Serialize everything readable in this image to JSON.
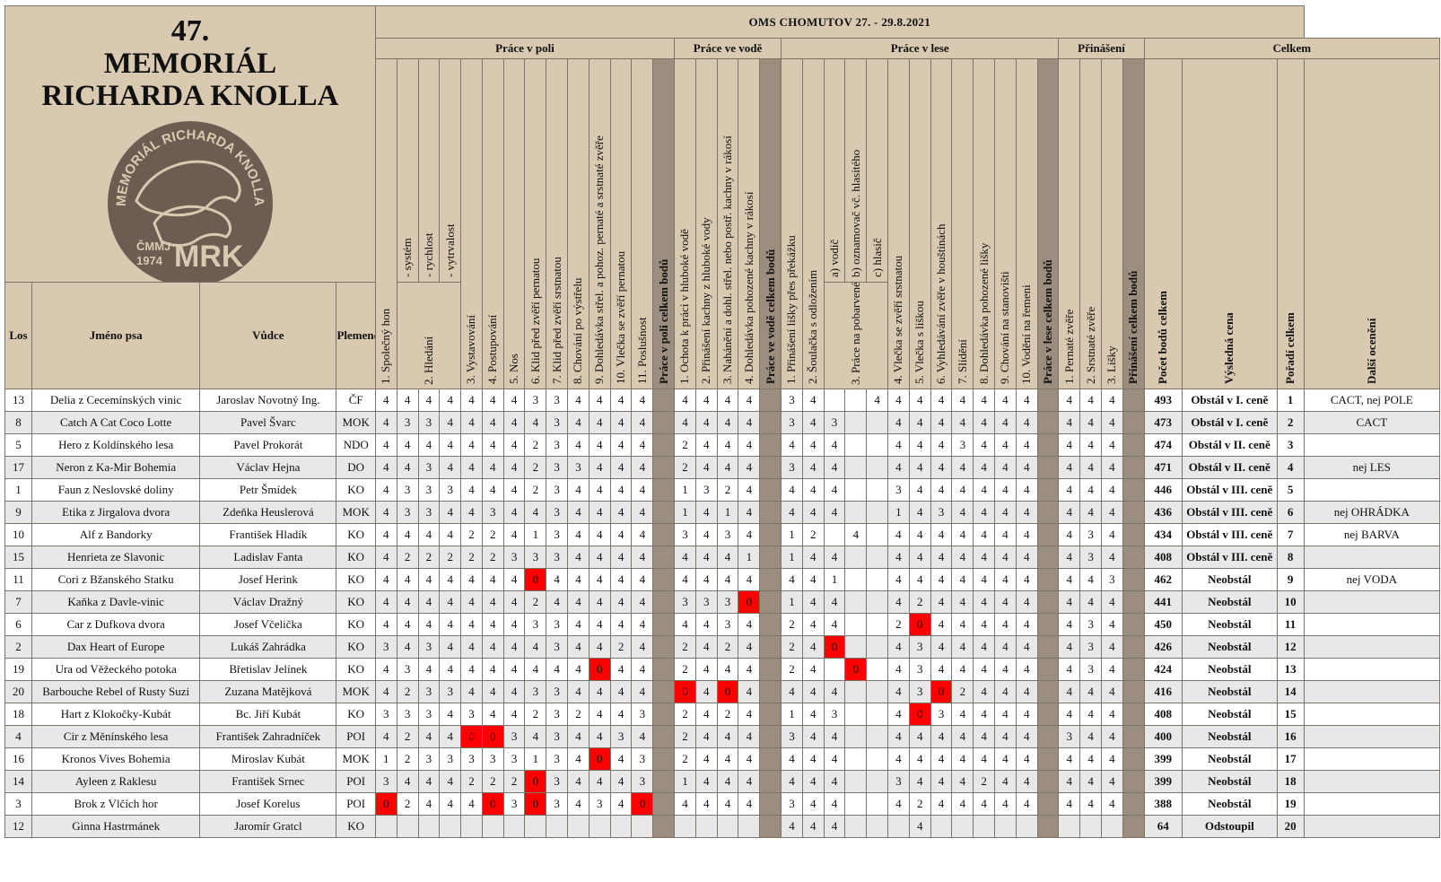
{
  "title_number": "47.",
  "title_line1": "MEMORIÁL",
  "title_line2": "RICHARDA KNOLLA",
  "logo": {
    "ring_text": "MEMORIÁL RICHARDA KNOLLA",
    "left_text": "ČMMJ 1974",
    "initials": "MRK",
    "colors": {
      "badge": "#6b5d52",
      "ink": "#d8c9b0"
    }
  },
  "event_title": "OMS CHOMUTOV 27. - 29.8.2021",
  "groups": {
    "field": "Práce v poli",
    "water": "Práce ve vodě",
    "forest": "Práce v lese",
    "retrieve": "Přinášení",
    "total": "Celkem"
  },
  "headers": {
    "los": "Los",
    "name": "Jméno psa",
    "handler": "Vůdce",
    "breed": "Plemeno",
    "field": [
      "1. Společný hon",
      "- systém",
      "- rychlost",
      "- vytrvalost",
      "3. Vystavování",
      "4. Postupování",
      "5. Nos",
      "6. Klid před zvěří pernatou",
      "7. Klid před zvěří srstnatou",
      "8. Chování po výstřelu",
      "9. Dohledávka střel. a pohoz. pernaté a srstnaté zvěře",
      "10. Vlečka se zvěří pernatou",
      "11. Poslušnost"
    ],
    "field_hledani": "2. Hledání",
    "field_total": "Práce v poli celkem bodů",
    "water": [
      "1. Ochota k práci v hluboké vodě",
      "2. Přinášení kachny z hluboké vody",
      "3. Nahánění a dohl. střel. nebo postř. kachny v rákosí",
      "4. Dohledávka pohozené kachny v rákosí"
    ],
    "water_total": "Práce ve vodě celkem bodů",
    "forest": [
      "1. Přinášení lišky přes překážku",
      "2. Šoulačka s odložením",
      "a) vodič",
      "b) oznamovač vč. hlasitého",
      "c) hlasič",
      "4. Vlečka se zvěří srstnatou",
      "5. Vlečka s liškou",
      "6. Vyhledávání zvěře v houštinách",
      "7. Slídění",
      "8. Dohledávka pohozené lišky",
      "9. Chování na stanovišti",
      "10. Vodění na řemeni"
    ],
    "forest_3": "3. Práce na pobarvené stopě",
    "forest_total": "Práce v lese celkem bodů",
    "retrieve": [
      "1. Pernaté zvěře",
      "2. Srstnaté zvěře",
      "3. Lišky"
    ],
    "retrieve_total": "Přinášení celkem bodů",
    "total_points": "Počet bodů celkem",
    "prize": "Výsledná cena",
    "rank": "Pořadí celkem",
    "extra": "Další ocenění"
  },
  "colors": {
    "header_bg": "#d8c9b0",
    "separator": "#9c8e7e",
    "zero": "#ff0000"
  },
  "rows": [
    {
      "los": "13",
      "name": "Delia z Cecemínských vinic",
      "handler": "Jaroslav Novotný Ing.",
      "breed": "ČF",
      "field": [
        "4",
        "4",
        "4",
        "4",
        "4",
        "4",
        "4",
        "3",
        "3",
        "4",
        "4",
        "4",
        "4"
      ],
      "water": [
        "4",
        "4",
        "4",
        "4"
      ],
      "forest": [
        "3",
        "4",
        "",
        "",
        "4",
        "4",
        "4",
        "4",
        "4",
        "4",
        "4",
        "4"
      ],
      "retrieve": [
        "4",
        "4",
        "4"
      ],
      "total": "493",
      "prize": "Obstál v I. ceně",
      "rank": "1",
      "extra": "CACT, nej POLE"
    },
    {
      "los": "8",
      "name": "Catch A Cat Coco Lotte",
      "handler": "Pavel Švarc",
      "breed": "MOK",
      "field": [
        "4",
        "3",
        "3",
        "4",
        "4",
        "4",
        "4",
        "4",
        "3",
        "4",
        "4",
        "4",
        "4"
      ],
      "water": [
        "4",
        "4",
        "4",
        "4"
      ],
      "forest": [
        "3",
        "4",
        "3",
        "",
        "",
        "4",
        "4",
        "4",
        "4",
        "4",
        "4",
        "4"
      ],
      "retrieve": [
        "4",
        "4",
        "4"
      ],
      "total": "473",
      "prize": "Obstál v I. ceně",
      "rank": "2",
      "extra": "CACT"
    },
    {
      "los": "5",
      "name": "Hero z Koldínského lesa",
      "handler": "Pavel Prokorát",
      "breed": "NDO",
      "field": [
        "4",
        "4",
        "4",
        "4",
        "4",
        "4",
        "4",
        "2",
        "3",
        "4",
        "4",
        "4",
        "4"
      ],
      "water": [
        "2",
        "4",
        "4",
        "4"
      ],
      "forest": [
        "4",
        "4",
        "4",
        "",
        "",
        "4",
        "4",
        "4",
        "3",
        "4",
        "4",
        "4"
      ],
      "retrieve": [
        "4",
        "4",
        "4"
      ],
      "total": "474",
      "prize": "Obstál v II. ceně",
      "rank": "3",
      "extra": ""
    },
    {
      "los": "17",
      "name": "Neron z Ka-Mir Bohemia",
      "handler": "Václav Hejna",
      "breed": "DO",
      "field": [
        "4",
        "4",
        "3",
        "4",
        "4",
        "4",
        "4",
        "2",
        "3",
        "3",
        "4",
        "4",
        "4"
      ],
      "water": [
        "2",
        "4",
        "4",
        "4"
      ],
      "forest": [
        "3",
        "4",
        "4",
        "",
        "",
        "4",
        "4",
        "4",
        "4",
        "4",
        "4",
        "4"
      ],
      "retrieve": [
        "4",
        "4",
        "4"
      ],
      "total": "471",
      "prize": "Obstál v II. ceně",
      "rank": "4",
      "extra": "nej LES"
    },
    {
      "los": "1",
      "name": "Faun z Neslovské doliny",
      "handler": "Petr Šmídek",
      "breed": "KO",
      "field": [
        "4",
        "3",
        "3",
        "3",
        "4",
        "4",
        "4",
        "2",
        "3",
        "4",
        "4",
        "4",
        "4"
      ],
      "water": [
        "1",
        "3",
        "2",
        "4"
      ],
      "forest": [
        "4",
        "4",
        "4",
        "",
        "",
        "3",
        "4",
        "4",
        "4",
        "4",
        "4",
        "4"
      ],
      "retrieve": [
        "4",
        "4",
        "4"
      ],
      "total": "446",
      "prize": "Obstál v III. ceně",
      "rank": "5",
      "extra": ""
    },
    {
      "los": "9",
      "name": "Etika z Jirgalova dvora",
      "handler": "Zdeňka Heuslerová",
      "breed": "MOK",
      "field": [
        "4",
        "3",
        "3",
        "4",
        "4",
        "3",
        "4",
        "4",
        "3",
        "4",
        "4",
        "4",
        "4"
      ],
      "water": [
        "1",
        "4",
        "1",
        "4"
      ],
      "forest": [
        "4",
        "4",
        "4",
        "",
        "",
        "1",
        "4",
        "3",
        "4",
        "4",
        "4",
        "4"
      ],
      "retrieve": [
        "4",
        "4",
        "4"
      ],
      "total": "436",
      "prize": "Obstál v III. ceně",
      "rank": "6",
      "extra": "nej OHRÁDKA"
    },
    {
      "los": "10",
      "name": "Alf z Bandorky",
      "handler": "František Hladík",
      "breed": "KO",
      "field": [
        "4",
        "4",
        "4",
        "4",
        "2",
        "2",
        "4",
        "1",
        "3",
        "4",
        "4",
        "4",
        "4"
      ],
      "water": [
        "3",
        "4",
        "3",
        "4"
      ],
      "forest": [
        "1",
        "2",
        "",
        "4",
        "",
        "4",
        "4",
        "4",
        "4",
        "4",
        "4",
        "4"
      ],
      "retrieve": [
        "4",
        "3",
        "4"
      ],
      "total": "434",
      "prize": "Obstál v III. ceně",
      "rank": "7",
      "extra": "nej BARVA"
    },
    {
      "los": "15",
      "name": "Henrieta ze Slavonic",
      "handler": "Ladislav Fanta",
      "breed": "KO",
      "field": [
        "4",
        "2",
        "2",
        "2",
        "2",
        "2",
        "3",
        "3",
        "3",
        "4",
        "4",
        "4",
        "4"
      ],
      "water": [
        "4",
        "4",
        "4",
        "1"
      ],
      "forest": [
        "1",
        "4",
        "4",
        "",
        "",
        "4",
        "4",
        "4",
        "4",
        "4",
        "4",
        "4"
      ],
      "retrieve": [
        "4",
        "3",
        "4"
      ],
      "total": "408",
      "prize": "Obstál v III. ceně",
      "rank": "8",
      "extra": ""
    },
    {
      "los": "11",
      "name": "Cori z Bžanského Statku",
      "handler": "Josef Herink",
      "breed": "KO",
      "field": [
        "4",
        "4",
        "4",
        "4",
        "4",
        "4",
        "4",
        "0",
        "4",
        "4",
        "4",
        "4",
        "4"
      ],
      "water": [
        "4",
        "4",
        "4",
        "4"
      ],
      "forest": [
        "4",
        "4",
        "1",
        "",
        "",
        "4",
        "4",
        "4",
        "4",
        "4",
        "4",
        "4"
      ],
      "retrieve": [
        "4",
        "4",
        "3"
      ],
      "total": "462",
      "prize": "Neobstál",
      "rank": "9",
      "extra": "nej VODA"
    },
    {
      "los": "7",
      "name": "Kaňka z Davle-vinic",
      "handler": "Václav Dražný",
      "breed": "KO",
      "field": [
        "4",
        "4",
        "4",
        "4",
        "4",
        "4",
        "4",
        "2",
        "4",
        "4",
        "4",
        "4",
        "4"
      ],
      "water": [
        "3",
        "3",
        "3",
        "0"
      ],
      "forest": [
        "1",
        "4",
        "4",
        "",
        "",
        "4",
        "2",
        "4",
        "4",
        "4",
        "4",
        "4"
      ],
      "retrieve": [
        "4",
        "4",
        "4"
      ],
      "total": "441",
      "prize": "Neobstál",
      "rank": "10",
      "extra": ""
    },
    {
      "los": "6",
      "name": "Car z Dufkova dvora",
      "handler": "Josef Včelička",
      "breed": "KO",
      "field": [
        "4",
        "4",
        "4",
        "4",
        "4",
        "4",
        "4",
        "3",
        "3",
        "4",
        "4",
        "4",
        "4"
      ],
      "water": [
        "4",
        "4",
        "3",
        "4"
      ],
      "forest": [
        "2",
        "4",
        "4",
        "",
        "",
        "2",
        "0",
        "4",
        "4",
        "4",
        "4",
        "4"
      ],
      "retrieve": [
        "4",
        "3",
        "4"
      ],
      "total": "450",
      "prize": "Neobstál",
      "rank": "11",
      "extra": ""
    },
    {
      "los": "2",
      "name": "Dax Heart of Europe",
      "handler": "Lukáš Zahrádka",
      "breed": "KO",
      "field": [
        "3",
        "4",
        "3",
        "4",
        "4",
        "4",
        "4",
        "4",
        "3",
        "4",
        "4",
        "2",
        "4"
      ],
      "water": [
        "2",
        "4",
        "2",
        "4"
      ],
      "forest": [
        "2",
        "4",
        "0",
        "",
        "",
        "4",
        "3",
        "4",
        "4",
        "4",
        "4",
        "4"
      ],
      "retrieve": [
        "4",
        "3",
        "4"
      ],
      "total": "426",
      "prize": "Neobstál",
      "rank": "12",
      "extra": ""
    },
    {
      "los": "19",
      "name": "Ura od Věžeckého potoka",
      "handler": "Břetislav Jelínek",
      "breed": "KO",
      "field": [
        "4",
        "3",
        "4",
        "4",
        "4",
        "4",
        "4",
        "4",
        "4",
        "4",
        "0",
        "4",
        "4"
      ],
      "water": [
        "2",
        "4",
        "4",
        "4"
      ],
      "forest": [
        "2",
        "4",
        "",
        "0",
        "",
        "4",
        "3",
        "4",
        "4",
        "4",
        "4",
        "4"
      ],
      "retrieve": [
        "4",
        "3",
        "4"
      ],
      "total": "424",
      "prize": "Neobstál",
      "rank": "13",
      "extra": ""
    },
    {
      "los": "20",
      "name": "Barbouche Rebel of Rusty Suzi",
      "handler": "Zuzana Matějková",
      "breed": "MOK",
      "field": [
        "4",
        "2",
        "3",
        "3",
        "4",
        "4",
        "4",
        "3",
        "3",
        "4",
        "4",
        "4",
        "4"
      ],
      "water": [
        "0",
        "4",
        "0",
        "4"
      ],
      "forest": [
        "4",
        "4",
        "4",
        "",
        "",
        "4",
        "3",
        "0",
        "2",
        "4",
        "4",
        "4"
      ],
      "retrieve": [
        "4",
        "4",
        "4"
      ],
      "total": "416",
      "prize": "Neobstál",
      "rank": "14",
      "extra": ""
    },
    {
      "los": "18",
      "name": "Hart z Klokočky-Kubát",
      "handler": "Bc. Jiří Kubát",
      "breed": "KO",
      "field": [
        "3",
        "3",
        "3",
        "4",
        "3",
        "4",
        "4",
        "2",
        "3",
        "2",
        "4",
        "4",
        "3"
      ],
      "water": [
        "2",
        "4",
        "2",
        "4"
      ],
      "forest": [
        "1",
        "4",
        "3",
        "",
        "",
        "4",
        "0",
        "3",
        "4",
        "4",
        "4",
        "4"
      ],
      "retrieve": [
        "4",
        "4",
        "4"
      ],
      "total": "408",
      "prize": "Neobstál",
      "rank": "15",
      "extra": ""
    },
    {
      "los": "4",
      "name": "Cir z Měnínského lesa",
      "handler": "František Zahradníček",
      "breed": "POI",
      "field": [
        "4",
        "2",
        "4",
        "4",
        "0",
        "0",
        "3",
        "4",
        "3",
        "4",
        "4",
        "3",
        "4"
      ],
      "water": [
        "2",
        "4",
        "4",
        "4"
      ],
      "forest": [
        "3",
        "4",
        "4",
        "",
        "",
        "4",
        "4",
        "4",
        "4",
        "4",
        "4",
        "4"
      ],
      "retrieve": [
        "3",
        "4",
        "4"
      ],
      "total": "400",
      "prize": "Neobstál",
      "rank": "16",
      "extra": ""
    },
    {
      "los": "16",
      "name": "Kronos Vives Bohemia",
      "handler": "Miroslav Kubát",
      "breed": "MOK",
      "field": [
        "1",
        "2",
        "3",
        "3",
        "3",
        "3",
        "3",
        "1",
        "3",
        "4",
        "0",
        "4",
        "3"
      ],
      "water": [
        "2",
        "4",
        "4",
        "4"
      ],
      "forest": [
        "4",
        "4",
        "4",
        "",
        "",
        "4",
        "4",
        "4",
        "4",
        "4",
        "4",
        "4"
      ],
      "retrieve": [
        "4",
        "4",
        "4"
      ],
      "total": "399",
      "prize": "Neobstál",
      "rank": "17",
      "extra": ""
    },
    {
      "los": "14",
      "name": "Ayleen z Raklesu",
      "handler": "František Srnec",
      "breed": "POI",
      "field": [
        "3",
        "4",
        "4",
        "4",
        "2",
        "2",
        "2",
        "0",
        "3",
        "4",
        "4",
        "4",
        "3"
      ],
      "water": [
        "1",
        "4",
        "4",
        "4"
      ],
      "forest": [
        "4",
        "4",
        "4",
        "",
        "",
        "3",
        "4",
        "4",
        "4",
        "2",
        "4",
        "4"
      ],
      "retrieve": [
        "4",
        "4",
        "4"
      ],
      "total": "399",
      "prize": "Neobstál",
      "rank": "18",
      "extra": ""
    },
    {
      "los": "3",
      "name": "Brok z Vlčích hor",
      "handler": "Josef Korelus",
      "breed": "POI",
      "field": [
        "0",
        "2",
        "4",
        "4",
        "4",
        "0",
        "3",
        "0",
        "3",
        "4",
        "3",
        "4",
        "0"
      ],
      "water": [
        "4",
        "4",
        "4",
        "4"
      ],
      "forest": [
        "3",
        "4",
        "4",
        "",
        "",
        "4",
        "2",
        "4",
        "4",
        "4",
        "4",
        "4"
      ],
      "retrieve": [
        "4",
        "4",
        "4"
      ],
      "total": "388",
      "prize": "Neobstál",
      "rank": "19",
      "extra": ""
    },
    {
      "los": "12",
      "name": "Ginna Hastrmánek",
      "handler": "Jaromír Gratcl",
      "breed": "KO",
      "field": [
        "",
        "",
        "",
        "",
        "",
        "",
        "",
        "",
        "",
        "",
        "",
        "",
        ""
      ],
      "water": [
        "",
        "",
        "",
        ""
      ],
      "forest": [
        "4",
        "4",
        "4",
        "",
        "",
        "",
        "4",
        "",
        "",
        "",
        "",
        ""
      ],
      "retrieve": [
        "",
        "",
        ""
      ],
      "total": "64",
      "prize": "Odstoupil",
      "rank": "20",
      "extra": ""
    }
  ]
}
